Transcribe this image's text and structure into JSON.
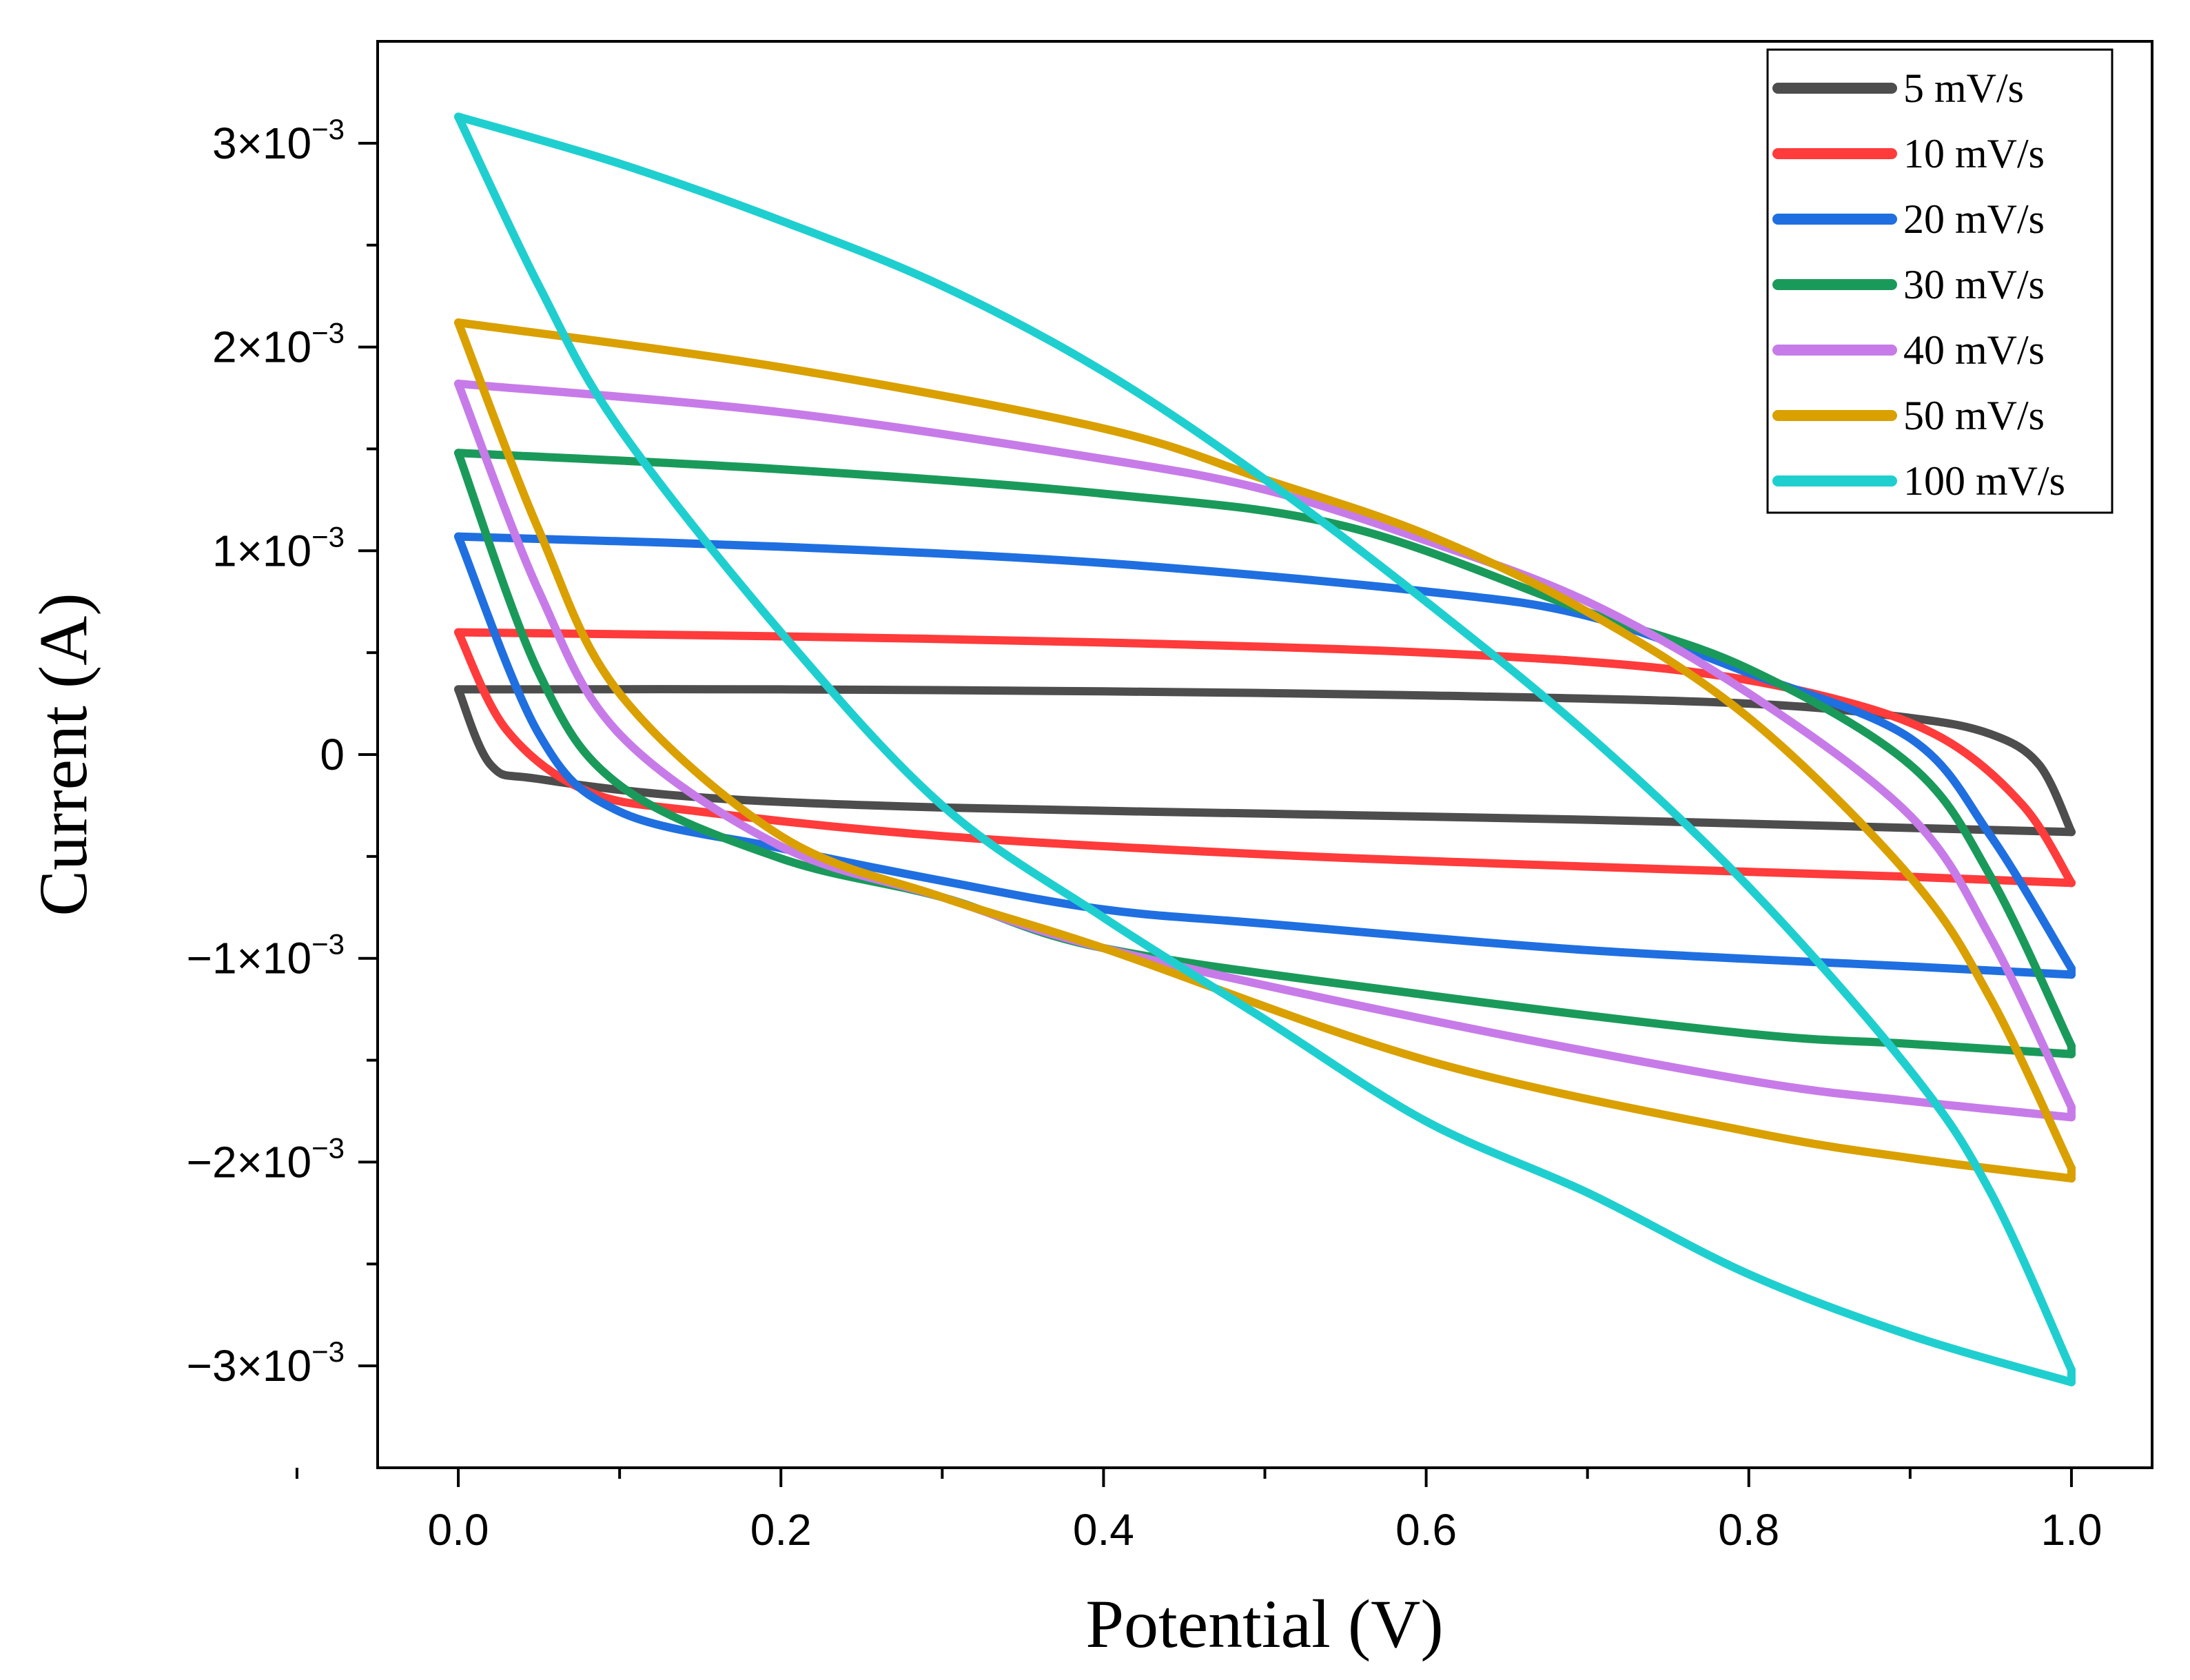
{
  "chart_data": {
    "type": "line",
    "title": "",
    "xlabel": "Potential (V)",
    "ylabel": "Current (A)",
    "xlim": [
      -0.05,
      1.05
    ],
    "ylim": [
      -0.0035,
      0.0035
    ],
    "xticks": [
      {
        "value": 0.0,
        "label": "0.0"
      },
      {
        "value": 0.2,
        "label": "0.2"
      },
      {
        "value": 0.4,
        "label": "0.4"
      },
      {
        "value": 0.6,
        "label": "0.6"
      },
      {
        "value": 0.8,
        "label": "0.8"
      },
      {
        "value": 1.0,
        "label": "1.0"
      }
    ],
    "yticks": [
      {
        "value": 0.003,
        "label": "3×10",
        "sup": "−3"
      },
      {
        "value": 0.002,
        "label": "2×10",
        "sup": "−3"
      },
      {
        "value": 0.001,
        "label": "1×10",
        "sup": "−3"
      },
      {
        "value": 0,
        "label": "0",
        "sup": ""
      },
      {
        "value": -0.001,
        "label": "−1×10",
        "sup": "−3"
      },
      {
        "value": -0.002,
        "label": "−2×10",
        "sup": "−3"
      },
      {
        "value": -0.003,
        "label": "−3×10",
        "sup": "−3"
      }
    ],
    "grid": false,
    "legend_position": "top-right",
    "series": [
      {
        "name": "5 mV/s",
        "color": "#4d4d4d",
        "top": [
          [
            0.0,
            0.00032
          ],
          [
            0.2,
            0.00032
          ],
          [
            0.4,
            0.00031
          ],
          [
            0.6,
            0.00029
          ],
          [
            0.8,
            0.00025
          ],
          [
            0.9,
            0.00018
          ],
          [
            0.95,
            0.0001
          ],
          [
            0.98,
            -5e-05
          ],
          [
            1.0,
            -0.00038
          ]
        ],
        "bottom": [
          [
            1.0,
            -0.00038
          ],
          [
            0.9,
            -0.00036
          ],
          [
            0.7,
            -0.00032
          ],
          [
            0.5,
            -0.00029
          ],
          [
            0.3,
            -0.00026
          ],
          [
            0.15,
            -0.00021
          ],
          [
            0.05,
            -0.00012
          ],
          [
            0.02,
            -5e-05
          ],
          [
            0.0,
            0.00032
          ]
        ]
      },
      {
        "name": "10 mV/s",
        "color": "#ff3b3b",
        "top": [
          [
            0.0,
            0.0006
          ],
          [
            0.2,
            0.00058
          ],
          [
            0.4,
            0.00055
          ],
          [
            0.6,
            0.0005
          ],
          [
            0.75,
            0.00042
          ],
          [
            0.85,
            0.00028
          ],
          [
            0.92,
            8e-05
          ],
          [
            0.97,
            -0.00025
          ],
          [
            1.0,
            -0.00063
          ]
        ],
        "bottom": [
          [
            1.0,
            -0.00063
          ],
          [
            0.9,
            -0.0006
          ],
          [
            0.7,
            -0.00055
          ],
          [
            0.5,
            -0.00049
          ],
          [
            0.3,
            -0.0004
          ],
          [
            0.15,
            -0.00028
          ],
          [
            0.08,
            -0.00018
          ],
          [
            0.03,
            0.00012
          ],
          [
            0.0,
            0.0006
          ]
        ]
      },
      {
        "name": "20 mV/s",
        "color": "#1f6fe0",
        "top": [
          [
            0.0,
            0.00107
          ],
          [
            0.2,
            0.00102
          ],
          [
            0.4,
            0.00094
          ],
          [
            0.6,
            0.0008
          ],
          [
            0.7,
            0.00068
          ],
          [
            0.8,
            0.0004
          ],
          [
            0.9,
            8e-05
          ],
          [
            0.95,
            -0.0004
          ],
          [
            1.0,
            -0.00105
          ]
        ],
        "bottom": [
          [
            1.0,
            -0.00108
          ],
          [
            0.9,
            -0.00104
          ],
          [
            0.7,
            -0.00096
          ],
          [
            0.5,
            -0.00083
          ],
          [
            0.4,
            -0.00076
          ],
          [
            0.3,
            -0.00062
          ],
          [
            0.2,
            -0.00046
          ],
          [
            0.1,
            -0.00028
          ],
          [
            0.05,
            0.0001
          ],
          [
            0.0,
            0.00107
          ]
        ]
      },
      {
        "name": "30 mV/s",
        "color": "#1a9a5a",
        "top": [
          [
            0.0,
            0.00148
          ],
          [
            0.2,
            0.0014
          ],
          [
            0.4,
            0.00128
          ],
          [
            0.55,
            0.00112
          ],
          [
            0.7,
            0.0007
          ],
          [
            0.8,
            0.00042
          ],
          [
            0.9,
            -5e-05
          ],
          [
            0.95,
            -0.0006
          ],
          [
            1.0,
            -0.00143
          ]
        ],
        "bottom": [
          [
            1.0,
            -0.00147
          ],
          [
            0.9,
            -0.00142
          ],
          [
            0.8,
            -0.00137
          ],
          [
            0.6,
            -0.00118
          ],
          [
            0.4,
            -0.00095
          ],
          [
            0.3,
            -0.0007
          ],
          [
            0.2,
            -0.00051
          ],
          [
            0.1,
            -0.00015
          ],
          [
            0.05,
            0.0004
          ],
          [
            0.0,
            0.00148
          ]
        ]
      },
      {
        "name": "40 mV/s",
        "color": "#c77be8",
        "top": [
          [
            0.0,
            0.00182
          ],
          [
            0.2,
            0.00168
          ],
          [
            0.4,
            0.00145
          ],
          [
            0.5,
            0.0013
          ],
          [
            0.6,
            0.00105
          ],
          [
            0.7,
            0.00075
          ],
          [
            0.8,
            0.0003
          ],
          [
            0.9,
            -0.0003
          ],
          [
            0.95,
            -0.0009
          ],
          [
            1.0,
            -0.00173
          ]
        ],
        "bottom": [
          [
            1.0,
            -0.00178
          ],
          [
            0.9,
            -0.0017
          ],
          [
            0.8,
            -0.0016
          ],
          [
            0.6,
            -0.0013
          ],
          [
            0.4,
            -0.00095
          ],
          [
            0.3,
            -0.0007
          ],
          [
            0.2,
            -0.00045
          ],
          [
            0.1,
            0.0001
          ],
          [
            0.05,
            0.0008
          ],
          [
            0.0,
            0.00182
          ]
        ]
      },
      {
        "name": "50 mV/s",
        "color": "#d9a000",
        "top": [
          [
            0.0,
            0.00212
          ],
          [
            0.2,
            0.0019
          ],
          [
            0.4,
            0.0016
          ],
          [
            0.5,
            0.00135
          ],
          [
            0.6,
            0.00108
          ],
          [
            0.7,
            0.0007
          ],
          [
            0.8,
            0.00018
          ],
          [
            0.9,
            -0.0006
          ],
          [
            0.95,
            -0.0012
          ],
          [
            1.0,
            -0.00203
          ]
        ],
        "bottom": [
          [
            1.0,
            -0.00208
          ],
          [
            0.9,
            -0.00198
          ],
          [
            0.8,
            -0.00185
          ],
          [
            0.6,
            -0.0015
          ],
          [
            0.4,
            -0.00095
          ],
          [
            0.3,
            -0.0007
          ],
          [
            0.2,
            -0.0004
          ],
          [
            0.1,
            0.0003
          ],
          [
            0.05,
            0.0011
          ],
          [
            0.0,
            0.00212
          ]
        ]
      },
      {
        "name": "100 mV/s",
        "color": "#1fcfcf",
        "top": [
          [
            0.0,
            0.00313
          ],
          [
            0.1,
            0.0029
          ],
          [
            0.2,
            0.00262
          ],
          [
            0.3,
            0.0023
          ],
          [
            0.4,
            0.00188
          ],
          [
            0.5,
            0.00135
          ],
          [
            0.6,
            0.00075
          ],
          [
            0.7,
            0.0001
          ],
          [
            0.8,
            -0.00065
          ],
          [
            0.9,
            -0.00155
          ],
          [
            0.95,
            -0.00215
          ],
          [
            1.0,
            -0.00302
          ]
        ],
        "bottom": [
          [
            1.0,
            -0.00308
          ],
          [
            0.9,
            -0.00285
          ],
          [
            0.8,
            -0.00255
          ],
          [
            0.7,
            -0.00215
          ],
          [
            0.6,
            -0.0018
          ],
          [
            0.5,
            -0.0013
          ],
          [
            0.4,
            -0.0008
          ],
          [
            0.3,
            -0.00025
          ],
          [
            0.2,
            0.0006
          ],
          [
            0.1,
            0.0016
          ],
          [
            0.05,
            0.0023
          ],
          [
            0.0,
            0.00313
          ]
        ]
      }
    ]
  }
}
